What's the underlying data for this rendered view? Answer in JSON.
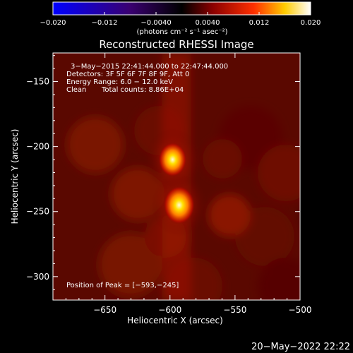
{
  "chart_data": {
    "type": "heatmap",
    "title": "Reconstructed RHESSI Image",
    "xlabel": "Heliocentric X (arcsec)",
    "ylabel": "Heliocentric Y (arcsec)",
    "xlim": [
      -690,
      -500
    ],
    "ylim": [
      -318,
      -128
    ],
    "x_ticks": [
      -650,
      -600,
      -550,
      -500
    ],
    "y_ticks": [
      -150,
      -200,
      -250,
      -300
    ],
    "x_tick_labels": [
      "−650",
      "−600",
      "−550",
      "−500"
    ],
    "y_tick_labels": [
      "−150",
      "−200",
      "−250",
      "−300"
    ],
    "colorbar": {
      "range": [
        -0.02,
        0.02
      ],
      "ticks": [
        -0.02,
        -0.012,
        -0.004,
        0.004,
        0.012,
        0.02
      ],
      "tick_labels": [
        "−0.020",
        "−0.012",
        "−0.0040",
        "0.0040",
        "0.012",
        "0.020"
      ],
      "label": "(photons cm⁻² s⁻¹ asec⁻²)",
      "colors": [
        "#0000ff",
        "#3a0070",
        "#000000",
        "#8b0000",
        "#ff3000",
        "#ffcc00",
        "#ffffff"
      ]
    },
    "sources": [
      {
        "x": -598,
        "y": -210,
        "peak": 0.018
      },
      {
        "x": -593,
        "y": -245,
        "peak": 0.02
      }
    ],
    "annotations": [
      "3−May−2015 22:41:44.000 to 22:47:44.000",
      "Detectors: 3F 5F 6F 7F 8F 9F, Att 0",
      "Energy Range: 6.0 − 12.0 keV",
      "Clean",
      "Total counts: 8.86E+04"
    ],
    "peak_label": "Position of Peak = [−593,−245]",
    "timestamp": "20−May−2022 22:22"
  }
}
